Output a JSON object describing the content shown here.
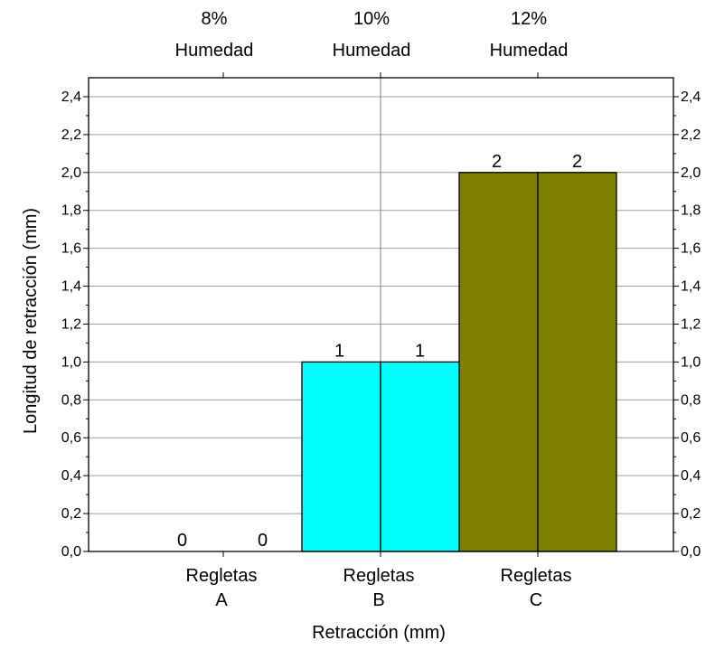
{
  "chart_data": {
    "type": "bar",
    "xlabel": "Retracción (mm)",
    "ylabel": "Longitud de retracción (mm)",
    "ylim": [
      0,
      2.5
    ],
    "yticks": [
      "0,0",
      "0,2",
      "0,4",
      "0,6",
      "0,8",
      "1,0",
      "1,2",
      "1,4",
      "1,6",
      "1,8",
      "2,0",
      "2,2",
      "2,4"
    ],
    "categories": [
      {
        "line1": "Regletas",
        "line2": "A",
        "top_line1": "8%",
        "top_line2": "Humedad",
        "color": "#ffffff",
        "bars": [
          0,
          0
        ],
        "labels": [
          "0",
          "0"
        ]
      },
      {
        "line1": "Regletas",
        "line2": "B",
        "top_line1": "10%",
        "top_line2": "Humedad",
        "color": "#00ffff",
        "bars": [
          1,
          1
        ],
        "labels": [
          "1",
          "1"
        ]
      },
      {
        "line1": "Regletas",
        "line2": "C",
        "top_line1": "12%",
        "top_line2": "Humedad",
        "color": "#808000",
        "bars": [
          2,
          2
        ],
        "labels": [
          "2",
          "2"
        ]
      }
    ],
    "grid": true,
    "right_axis": true,
    "center_vertical_line": true
  }
}
